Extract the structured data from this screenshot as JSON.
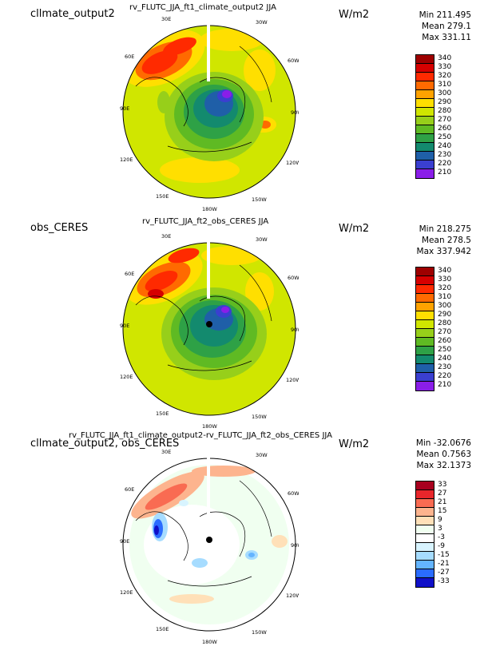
{
  "panels": [
    {
      "left_title": "cllmate_output2",
      "center_title": "rv_FLUTC_JJA_ft1_climate_output2  JJA",
      "units": "W/m2",
      "stats": {
        "min": "Min 211.495",
        "mean": "Mean 279.1",
        "max": "Max 331.11"
      },
      "colorbar": {
        "labels": [
          "340",
          "330",
          "320",
          "310",
          "300",
          "290",
          "280",
          "270",
          "260",
          "250",
          "240",
          "230",
          "220",
          "210"
        ],
        "colors": [
          "#9e0000",
          "#d60000",
          "#ff2a00",
          "#ff6a00",
          "#ffa200",
          "#ffdf00",
          "#d0e600",
          "#97cf1a",
          "#5fba23",
          "#2ea146",
          "#138a6e",
          "#1f5fa8",
          "#3a3fd0",
          "#8a1ee8"
        ]
      }
    },
    {
      "left_title": "obs_CERES",
      "center_title": "rv_FLUTC_JJA_ft2_obs_CERES  JJA",
      "units": "W/m2",
      "stats": {
        "min": "Min 218.275",
        "mean": "Mean 278.5",
        "max": "Max 337.942"
      },
      "colorbar": {
        "labels": [
          "340",
          "330",
          "320",
          "310",
          "300",
          "290",
          "280",
          "270",
          "260",
          "250",
          "240",
          "230",
          "220",
          "210"
        ],
        "colors": [
          "#9e0000",
          "#d60000",
          "#ff2a00",
          "#ff6a00",
          "#ffa200",
          "#ffdf00",
          "#d0e600",
          "#97cf1a",
          "#5fba23",
          "#2ea146",
          "#138a6e",
          "#1f5fa8",
          "#3a3fd0",
          "#8a1ee8"
        ]
      }
    },
    {
      "left_title": "cllmate_output2, obs_CERES",
      "center_title": "rv_FLUTC_JJA_ft1_climate_output2-rv_FLUTC_JJA_ft2_obs_CERES  JJA",
      "units": "W/m2",
      "stats": {
        "min": "Min -32.0676",
        "mean": "Mean 0.7563",
        "max": "Max 32.1373"
      },
      "colorbar": {
        "labels": [
          "33",
          "27",
          "21",
          "15",
          "9",
          "3",
          "-3",
          "-9",
          "-15",
          "-21",
          "-27",
          "-33"
        ],
        "colors": [
          "#a8001f",
          "#e8262b",
          "#f96b52",
          "#fdb48e",
          "#ffe0b8",
          "#f0fff0",
          "#ffffff",
          "#d8f4ff",
          "#a6dcff",
          "#64b4ff",
          "#2a6cff",
          "#1010c8"
        ]
      }
    }
  ],
  "longitude_labels": [
    "30E",
    "30W",
    "60E",
    "60W",
    "90E",
    "90W",
    "120E",
    "120W",
    "150E",
    "150W",
    "180W"
  ]
}
